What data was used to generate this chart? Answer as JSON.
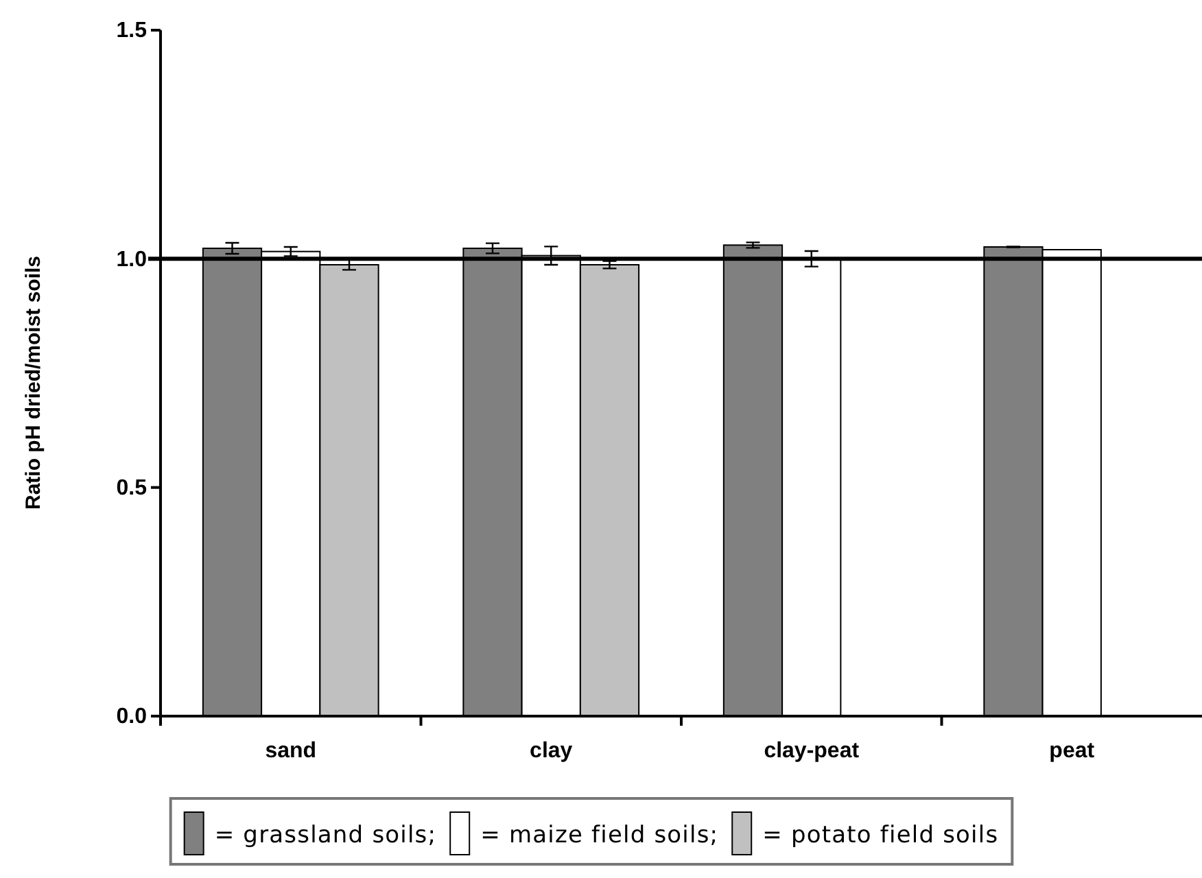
{
  "chart_data": {
    "type": "bar",
    "categories": [
      "sand",
      "clay",
      "clay-peat",
      "peat"
    ],
    "ylabel": "Ratio pH dried/moist soils",
    "ylim": [
      0,
      1.5
    ],
    "yticks": [
      {
        "value": 0,
        "label": "0.0"
      },
      {
        "value": 0.5,
        "label": "0.5"
      },
      {
        "value": 1,
        "label": "1.0"
      },
      {
        "value": 1.5,
        "label": "1.5"
      }
    ],
    "series": [
      {
        "name": "= grassland soils;",
        "color": "#808080",
        "values": [
          1.023,
          1.023,
          1.03,
          1.026
        ],
        "errors": [
          0.012,
          0.011,
          0.006,
          0.001
        ]
      },
      {
        "name": "= maize field soils;",
        "color": "#ffffff",
        "values": [
          1.016,
          1.007,
          1.0,
          1.02
        ],
        "errors": [
          0.01,
          0.02,
          0.017,
          null
        ]
      },
      {
        "name": "= potato field soils",
        "color": "#c0c0c0",
        "values": [
          0.987,
          0.987,
          null,
          null
        ],
        "errors": [
          0.011,
          0.008,
          null,
          null
        ]
      }
    ],
    "ref_lines": [
      {
        "axis": "y",
        "value": 1,
        "color": "#000000"
      }
    ],
    "legend": "bottom"
  }
}
